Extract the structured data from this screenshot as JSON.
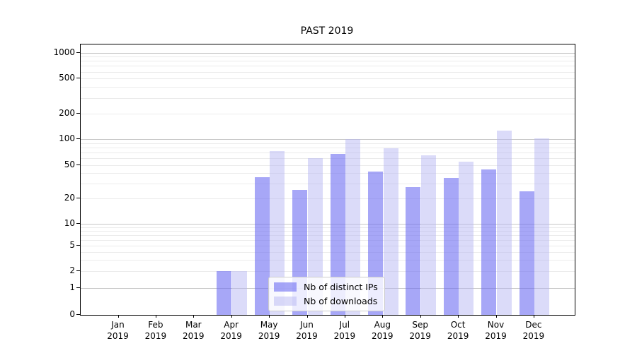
{
  "chart_data": {
    "type": "bar",
    "title": "PAST 2019",
    "categories": [
      "Jan",
      "Feb",
      "Mar",
      "Apr",
      "May",
      "Jun",
      "Jul",
      "Aug",
      "Sep",
      "Oct",
      "Nov",
      "Dec"
    ],
    "year_label": "2019",
    "yscale": "symlog",
    "ylim": [
      0,
      1250
    ],
    "grid": true,
    "legend_location": "lower center",
    "yticks": [
      {
        "value": 0,
        "label": "0"
      },
      {
        "value": 1,
        "label": "1"
      },
      {
        "value": 2,
        "label": "2"
      },
      {
        "value": 5,
        "label": "5"
      },
      {
        "value": 10,
        "label": "10"
      },
      {
        "value": 20,
        "label": "20"
      },
      {
        "value": 50,
        "label": "50"
      },
      {
        "value": 100,
        "label": "100"
      },
      {
        "value": 200,
        "label": "200"
      },
      {
        "value": 500,
        "label": "500"
      },
      {
        "value": 1000,
        "label": "1000"
      }
    ],
    "series": [
      {
        "name": "Nb of distinct IPs",
        "color": "rgba(108,108,242,0.60)",
        "values": [
          0,
          0,
          0,
          2,
          36,
          25,
          67,
          42,
          27,
          35,
          44,
          24
        ]
      },
      {
        "name": "Nb of downloads",
        "color": "rgba(178,178,242,0.47)",
        "values": [
          0,
          0,
          0,
          2,
          73,
          60,
          100,
          78,
          65,
          55,
          125,
          103
        ]
      }
    ]
  }
}
